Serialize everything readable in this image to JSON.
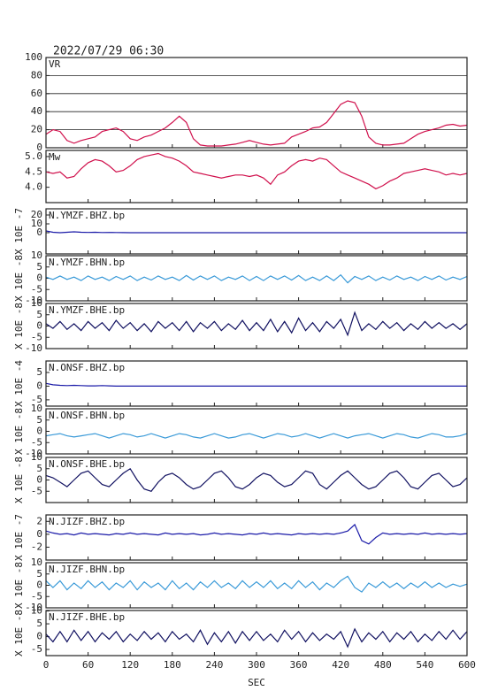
{
  "chart_data": {
    "type": "stacked-lines",
    "title": "2022/07/29 06:30",
    "xlabel": "SEC",
    "x": [
      0,
      10,
      20,
      30,
      40,
      50,
      60,
      70,
      80,
      90,
      100,
      110,
      120,
      130,
      140,
      150,
      160,
      170,
      180,
      190,
      200,
      210,
      220,
      230,
      240,
      250,
      260,
      270,
      280,
      290,
      300,
      310,
      320,
      330,
      340,
      350,
      360,
      370,
      380,
      390,
      400,
      410,
      420,
      430,
      440,
      450,
      460,
      470,
      480,
      490,
      500,
      510,
      520,
      530,
      540,
      550,
      560,
      570,
      580,
      590,
      600
    ],
    "xlim": [
      0,
      600
    ],
    "xticks": [
      0,
      60,
      120,
      180,
      240,
      300,
      360,
      420,
      480,
      540,
      600
    ],
    "panels": [
      {
        "type": "line",
        "label": "VR",
        "color": "#d0104c",
        "ylim": [
          0,
          100
        ],
        "yticks": [
          0,
          20,
          40,
          60,
          80,
          100
        ],
        "grid": true,
        "values": [
          15,
          20,
          18,
          8,
          5,
          8,
          10,
          12,
          18,
          20,
          22,
          18,
          10,
          8,
          12,
          14,
          18,
          22,
          28,
          35,
          28,
          10,
          3,
          2,
          2,
          2,
          3,
          4,
          6,
          8,
          6,
          4,
          3,
          4,
          5,
          12,
          15,
          18,
          22,
          23,
          28,
          38,
          48,
          52,
          50,
          35,
          12,
          5,
          3,
          3,
          4,
          5,
          10,
          15,
          18,
          20,
          22,
          25,
          26,
          24,
          25
        ]
      },
      {
        "type": "line",
        "label": "Mw",
        "color": "#d0104c",
        "ylim": [
          3.5,
          5.2
        ],
        "yticks": [
          {
            "value": 4,
            "label": "4.0"
          },
          4.5,
          {
            "value": 5,
            "label": "5.0"
          }
        ],
        "grid": false,
        "values": [
          4.5,
          4.45,
          4.5,
          4.3,
          4.35,
          4.6,
          4.8,
          4.9,
          4.85,
          4.7,
          4.5,
          4.55,
          4.7,
          4.9,
          5.0,
          5.05,
          5.1,
          5.0,
          4.95,
          4.85,
          4.7,
          4.5,
          4.45,
          4.4,
          4.35,
          4.3,
          4.35,
          4.4,
          4.4,
          4.35,
          4.4,
          4.3,
          4.1,
          4.4,
          4.5,
          4.7,
          4.85,
          4.9,
          4.85,
          4.95,
          4.9,
          4.7,
          4.5,
          4.4,
          4.3,
          4.2,
          4.1,
          3.95,
          4.05,
          4.2,
          4.3,
          4.45,
          4.5,
          4.55,
          4.6,
          4.55,
          4.5,
          4.4,
          4.45,
          4.4,
          4.45
        ]
      },
      {
        "type": "line",
        "label": "N.YMZF.BHZ.bp",
        "unit": "X 10E -7",
        "color": "#1a1aa8",
        "ylim": [
          -24,
          27
        ],
        "yticks": [
          0,
          10,
          20
        ],
        "grid": false,
        "values": [
          2,
          0.5,
          0,
          0.5,
          1,
          0.5,
          0.3,
          0.5,
          0.2,
          0.3,
          0.2,
          0.1,
          0,
          0,
          0,
          0,
          0,
          0,
          0,
          0,
          0,
          0,
          0,
          0,
          0,
          0,
          0,
          0,
          0,
          0,
          0,
          0,
          0,
          0,
          0,
          0,
          0,
          0,
          0,
          0,
          0,
          0,
          0,
          0,
          0,
          0,
          0,
          0,
          0,
          0,
          0,
          0,
          0,
          0,
          0,
          0,
          0,
          0,
          0,
          0,
          0
        ]
      },
      {
        "type": "line",
        "label": "N.YMZF.BHN.bp",
        "unit": "X 10E -8",
        "color": "#3a9ad8",
        "ylim": [
          -10,
          10
        ],
        "yticks": [
          -10,
          -5,
          0,
          5,
          10
        ],
        "grid": false,
        "values": [
          0.5,
          -0.5,
          1,
          -0.5,
          0.5,
          -1,
          1,
          -0.5,
          0.5,
          -1,
          0.8,
          -0.5,
          1,
          -1,
          0.5,
          -0.8,
          1,
          -0.5,
          0.5,
          -1,
          1.2,
          -0.8,
          1,
          -0.5,
          1,
          -1,
          0.5,
          -0.5,
          1,
          -1,
          0.8,
          -1,
          1,
          -0.5,
          1,
          -0.8,
          1.2,
          -1,
          0.5,
          -1,
          1,
          -1,
          1.5,
          -2,
          0.8,
          -0.5,
          1,
          -1,
          0.5,
          -0.8,
          1,
          -0.5,
          0.5,
          -1,
          0.8,
          -0.5,
          1,
          -0.8,
          0.5,
          -0.5,
          0.8
        ]
      },
      {
        "type": "line",
        "label": "N.YMZF.BHE.bp",
        "unit": "X 10E -8",
        "color": "#101060",
        "ylim": [
          -10,
          10
        ],
        "yticks": [
          -10,
          -5,
          0,
          5,
          10
        ],
        "grid": false,
        "values": [
          1,
          -1,
          2,
          -1.5,
          1,
          -2,
          2,
          -1,
          1.5,
          -2,
          2.5,
          -1,
          1.5,
          -2,
          1,
          -2.5,
          2,
          -1,
          1.5,
          -2,
          2,
          -2.5,
          1.5,
          -1,
          2,
          -2,
          1,
          -1.5,
          2.5,
          -2,
          1.5,
          -2,
          3,
          -2.5,
          2,
          -3,
          3.5,
          -2,
          1.5,
          -2.5,
          2,
          -1,
          3,
          -4,
          6,
          -2,
          1,
          -1.5,
          2,
          -1,
          1.5,
          -2,
          1,
          -1.5,
          2,
          -1,
          1.5,
          -1,
          1,
          -1.5,
          1
        ]
      },
      {
        "type": "line",
        "label": "N.ONSF.BHZ.bp",
        "unit": "X 10E -4",
        "color": "#1a1aa8",
        "ylim": [
          -7.3,
          9.2
        ],
        "yticks": [
          -5,
          0,
          5
        ],
        "grid": false,
        "values": [
          1,
          0.5,
          0.3,
          0.2,
          0.3,
          0.2,
          0.1,
          0.1,
          0.2,
          0.1,
          0,
          0,
          0,
          0,
          0,
          0,
          0,
          0,
          0,
          0,
          0,
          0,
          0,
          0,
          0,
          0,
          0,
          0,
          0,
          0,
          0,
          0,
          0,
          0,
          0,
          0,
          0,
          0,
          0,
          0,
          0,
          0,
          0,
          0,
          0,
          0,
          0,
          0,
          0,
          0,
          0,
          0,
          0,
          0,
          0,
          0,
          0,
          0,
          0,
          0,
          0
        ]
      },
      {
        "type": "line",
        "label": "N.ONSF.BHN.bp",
        "unit": "X 10E -8",
        "color": "#3a9ad8",
        "ylim": [
          -10,
          10
        ],
        "yticks": [
          -10,
          -5,
          0,
          5,
          10
        ],
        "grid": false,
        "values": [
          -2,
          -1.5,
          -1,
          -2,
          -2.5,
          -2,
          -1.5,
          -1,
          -2,
          -3,
          -2,
          -1,
          -1.5,
          -2.5,
          -2,
          -1,
          -2,
          -3,
          -2,
          -1,
          -1.5,
          -2.5,
          -3,
          -2,
          -1,
          -2,
          -3,
          -2.5,
          -1.5,
          -1,
          -2,
          -3,
          -2,
          -1,
          -1.5,
          -2.5,
          -2,
          -1,
          -2,
          -3,
          -2,
          -1,
          -2,
          -3,
          -2,
          -1.5,
          -1,
          -2,
          -3,
          -2,
          -1,
          -1.5,
          -2.5,
          -3,
          -2,
          -1,
          -1.5,
          -2.5,
          -2.5,
          -2,
          -1
        ]
      },
      {
        "type": "line",
        "label": "N.ONSF.BHE.bp",
        "unit": "X 10E -8",
        "color": "#101060",
        "ylim": [
          -10,
          10
        ],
        "yticks": [
          -5,
          0,
          5,
          10
        ],
        "grid": false,
        "values": [
          2,
          1,
          -1,
          -3,
          0,
          3,
          4,
          1,
          -2,
          -3,
          0,
          3,
          5,
          0,
          -4,
          -5,
          -1,
          2,
          3,
          1,
          -2,
          -4,
          -3,
          0,
          3,
          4,
          1,
          -3,
          -4,
          -2,
          1,
          3,
          2,
          -1,
          -3,
          -2,
          1,
          4,
          3,
          -2,
          -4,
          -1,
          2,
          4,
          1,
          -2,
          -4,
          -3,
          0,
          3,
          4,
          1,
          -3,
          -4,
          -1,
          2,
          3,
          0,
          -3,
          -2,
          1
        ]
      },
      {
        "type": "line",
        "label": "N.JIZF.BHZ.bp",
        "unit": "X 10E -7",
        "color": "#1a1aa8",
        "ylim": [
          -4,
          3
        ],
        "yticks": [
          -2,
          0,
          2
        ],
        "grid": false,
        "values": [
          0.5,
          0.2,
          0,
          0.1,
          -0.1,
          0.2,
          0,
          0.1,
          0,
          -0.1,
          0.1,
          0,
          0.2,
          0,
          0.1,
          0,
          -0.1,
          0.2,
          0,
          0.1,
          0,
          0.1,
          -0.1,
          0,
          0.2,
          0,
          0.1,
          0,
          -0.1,
          0.1,
          0,
          0.2,
          0,
          0.1,
          0,
          -0.1,
          0.1,
          0,
          0.1,
          0,
          0.1,
          0,
          0.2,
          0.5,
          1.5,
          -1,
          -1.5,
          -0.5,
          0.2,
          0,
          0.1,
          0,
          0.1,
          0,
          0.2,
          0,
          0.1,
          0,
          0.1,
          0,
          0.1
        ]
      },
      {
        "type": "line",
        "label": "N.JIZF.BHN.bp",
        "unit": "X 10E -8",
        "color": "#3a9ad8",
        "ylim": [
          -10,
          10
        ],
        "yticks": [
          -10,
          -5,
          0,
          5,
          10
        ],
        "grid": false,
        "values": [
          2,
          -1,
          2,
          -2,
          1,
          -1.5,
          2,
          -1,
          1.5,
          -2,
          1,
          -1,
          2,
          -2,
          1.5,
          -1,
          1,
          -2,
          2,
          -1.5,
          1,
          -2,
          1.5,
          -1,
          2,
          -1,
          1,
          -1.5,
          2,
          -1,
          1.5,
          -1,
          2,
          -1.5,
          1,
          -1.5,
          2,
          -1,
          1.5,
          -2,
          1,
          -1,
          2,
          4,
          -1,
          -3,
          1,
          -1,
          1.5,
          -1,
          1,
          -1.5,
          1,
          -1,
          1.5,
          -1,
          1,
          -1,
          0.5,
          -0.5,
          0.5
        ]
      },
      {
        "type": "line",
        "label": "N.JIZF.BHE.bp",
        "unit": "X 10E -8",
        "color": "#101060",
        "ylim": [
          -7.4,
          10.2
        ],
        "yticks": [
          -5,
          0,
          5,
          10
        ],
        "grid": false,
        "values": [
          1,
          -2,
          2,
          -2,
          2.5,
          -1.5,
          2,
          -2,
          1.5,
          -1,
          2,
          -2,
          1,
          -1.5,
          2,
          -1,
          1.5,
          -2,
          2,
          -1,
          1,
          -2,
          2.5,
          -3,
          1.5,
          -2,
          2,
          -2.5,
          2,
          -1.5,
          2,
          -1.5,
          1,
          -2,
          2.5,
          -1,
          2,
          -2,
          1.5,
          -1.5,
          1,
          -1,
          2,
          -4,
          3,
          -2,
          1.5,
          -1,
          2,
          -2,
          1.5,
          -1,
          2,
          -2,
          1,
          -1.5,
          2,
          -1,
          2.5,
          -1,
          2
        ]
      }
    ]
  }
}
